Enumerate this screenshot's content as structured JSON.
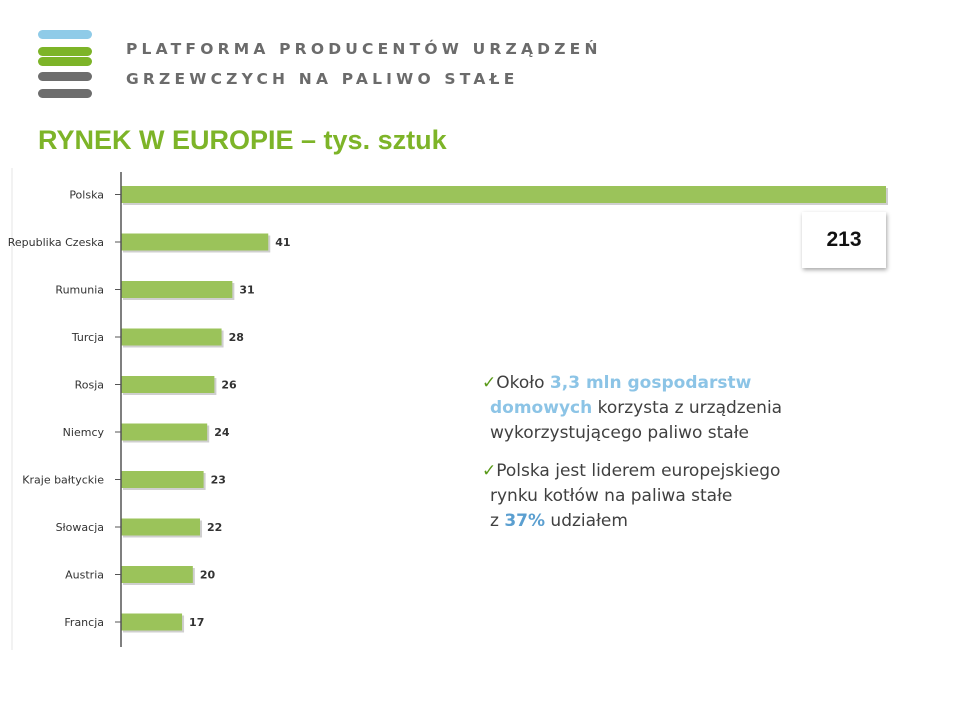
{
  "header": {
    "org_line1": "PLATFORMA PRODUCENTÓW URZĄDZEŃ",
    "org_line2": "GRZEWCZYCH NA PALIWO STAŁE",
    "logo_colors": [
      "#8fcbe8",
      "#7db428",
      "#7db428",
      "#6d6d6d",
      "#6d6d6d"
    ]
  },
  "page_title": "RYNEK W EUROPIE – tys. sztuk",
  "chart_data": {
    "type": "bar",
    "orientation": "horizontal",
    "categories": [
      "Polska",
      "Republika Czeska",
      "Rumunia",
      "Turcja",
      "Rosja",
      "Niemcy",
      "Kraje bałtyckie",
      "Słowacja",
      "Austria",
      "Francja"
    ],
    "values": [
      213,
      41,
      31,
      28,
      26,
      24,
      23,
      22,
      20,
      17
    ],
    "data_labels": [
      "",
      "41",
      "31",
      "28",
      "26",
      "24",
      "23",
      "22",
      "20",
      "17"
    ],
    "bar_color": "#9bc35a",
    "xlim": [
      0,
      213
    ],
    "grid": false
  },
  "callout": {
    "value_label": "213"
  },
  "notes": {
    "note1": {
      "check": "✓",
      "prefix": "Około ",
      "highlight_a": "3,3 mln gospodarstw",
      "highlight_b": "domowych",
      "mid": " korzysta z urządzenia",
      "line3": "wykorzystującego paliwo stałe"
    },
    "note2": {
      "check": "✓",
      "line1": "Polska jest liderem europejskiego",
      "line2": "rynku kotłów na paliwa stałe",
      "prefix3": "z ",
      "highlight": "37%",
      "suffix3": " udziałem"
    }
  }
}
